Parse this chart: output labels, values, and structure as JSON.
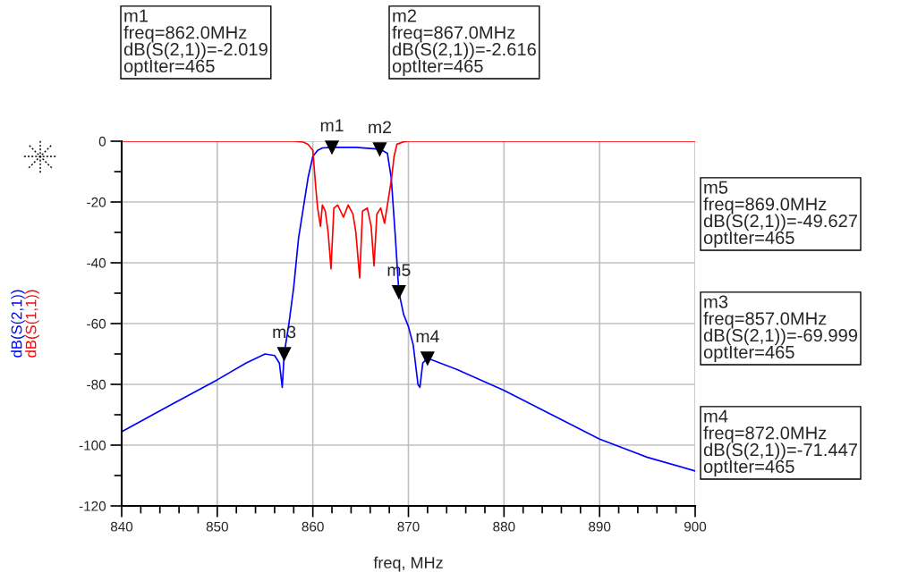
{
  "chart_data": {
    "type": "line",
    "xlabel": "freq, MHz",
    "series": [
      {
        "name": "dB(S(2,1))",
        "color": "#0000ff",
        "x": [
          840,
          845,
          850,
          853,
          855,
          856,
          856.5,
          856.8,
          857.0,
          857.5,
          858.0,
          858.5,
          859.0,
          859.5,
          860.0,
          860.5,
          861.0,
          862.0,
          864.5,
          867.0,
          867.8,
          868.2,
          868.6,
          869.0,
          869.5,
          870.0,
          870.5,
          871.0,
          871.2,
          871.5,
          872.0,
          875,
          880,
          885,
          890,
          895,
          900
        ],
        "values": [
          -95.6,
          -87,
          -78.5,
          -73,
          -70,
          -70.5,
          -73,
          -81,
          -70,
          -60,
          -48,
          -32,
          -22,
          -12,
          -5,
          -3,
          -2.2,
          -2.0,
          -2.0,
          -2.6,
          -4,
          -12,
          -30,
          -49.6,
          -57,
          -61,
          -67,
          -80,
          -81,
          -73,
          -71.4,
          -75,
          -82,
          -90,
          -98,
          -104,
          -108.5
        ]
      },
      {
        "name": "dB(S(1,1))",
        "color": "#ff0000",
        "x": [
          840,
          850,
          858,
          859.0,
          859.5,
          860.0,
          860.3,
          860.5,
          860.8,
          861.0,
          861.3,
          861.6,
          861.9,
          862.2,
          862.6,
          863.2,
          863.7,
          864.2,
          864.5,
          864.9,
          865.2,
          865.7,
          866.1,
          866.4,
          866.7,
          867.1,
          867.5,
          867.8,
          868.2,
          868.5,
          868.8,
          869.5,
          870,
          880,
          890,
          900
        ],
        "values": [
          0,
          0,
          0,
          -0.3,
          -1,
          -3,
          -15,
          -22,
          -28,
          -21,
          -23,
          -30,
          -42,
          -22,
          -21,
          -25,
          -21,
          -24,
          -30,
          -45,
          -23,
          -22,
          -28,
          -41,
          -24,
          -22,
          -27,
          -21,
          -13,
          -5,
          -1,
          -0.2,
          0,
          0,
          0,
          0
        ]
      }
    ],
    "xlim": [
      840,
      900
    ],
    "xticks": [
      840,
      {
        "value": 842,
        "label": null
      },
      {
        "value": 844,
        "label": null
      },
      {
        "value": 846,
        "label": null
      },
      {
        "value": 848,
        "label": null
      },
      850,
      {
        "value": 852,
        "label": null
      },
      {
        "value": 854,
        "label": null
      },
      {
        "value": 856,
        "label": null
      },
      {
        "value": 858,
        "label": null
      },
      860,
      {
        "value": 862,
        "label": null
      },
      {
        "value": 864,
        "label": null
      },
      {
        "value": 866,
        "label": null
      },
      {
        "value": 868,
        "label": null
      },
      870,
      {
        "value": 872,
        "label": null
      },
      {
        "value": 874,
        "label": null
      },
      {
        "value": 876,
        "label": null
      },
      {
        "value": 878,
        "label": null
      },
      880,
      {
        "value": 882,
        "label": null
      },
      {
        "value": 884,
        "label": null
      },
      {
        "value": 886,
        "label": null
      },
      {
        "value": 888,
        "label": null
      },
      890,
      {
        "value": 892,
        "label": null
      },
      {
        "value": 894,
        "label": null
      },
      {
        "value": 896,
        "label": null
      },
      {
        "value": 898,
        "label": null
      },
      900
    ],
    "ylim": [
      -120,
      0
    ],
    "yticks": [
      -120,
      {
        "value": -110,
        "label": null
      },
      -100,
      {
        "value": -90,
        "label": null
      },
      -80,
      {
        "value": -70,
        "label": null
      },
      -60,
      {
        "value": -50,
        "label": null
      },
      -40,
      {
        "value": -30,
        "label": null
      },
      -20,
      {
        "value": -10,
        "label": null
      },
      0
    ],
    "grid": true,
    "legend": false,
    "line_style": "solid",
    "marker": "none",
    "annotations": [
      {
        "text": "m1",
        "x": 862.0,
        "y": -2.019
      },
      {
        "text": "m2",
        "x": 867.0,
        "y": -2.616
      },
      {
        "text": "m5",
        "x": 869.0,
        "y": -49.627
      },
      {
        "text": "m3",
        "x": 857.0,
        "y": -69.999
      },
      {
        "text": "m4",
        "x": 872.0,
        "y": -71.447
      },
      "m1\nfreq=862.0MHz\ndB(S(2,1))=-2.019\noptIter=465",
      "m2\nfreq=867.0MHz\ndB(S(2,1))=-2.616\noptIter=465",
      "m5\nfreq=869.0MHz\ndB(S(2,1))=-49.627\noptIter=465",
      "m3\nfreq=857.0MHz\ndB(S(2,1))=-69.999\noptIter=465",
      "m4\nfreq=872.0MHz\ndB(S(2,1))=-71.447\noptIter=465"
    ]
  }
}
